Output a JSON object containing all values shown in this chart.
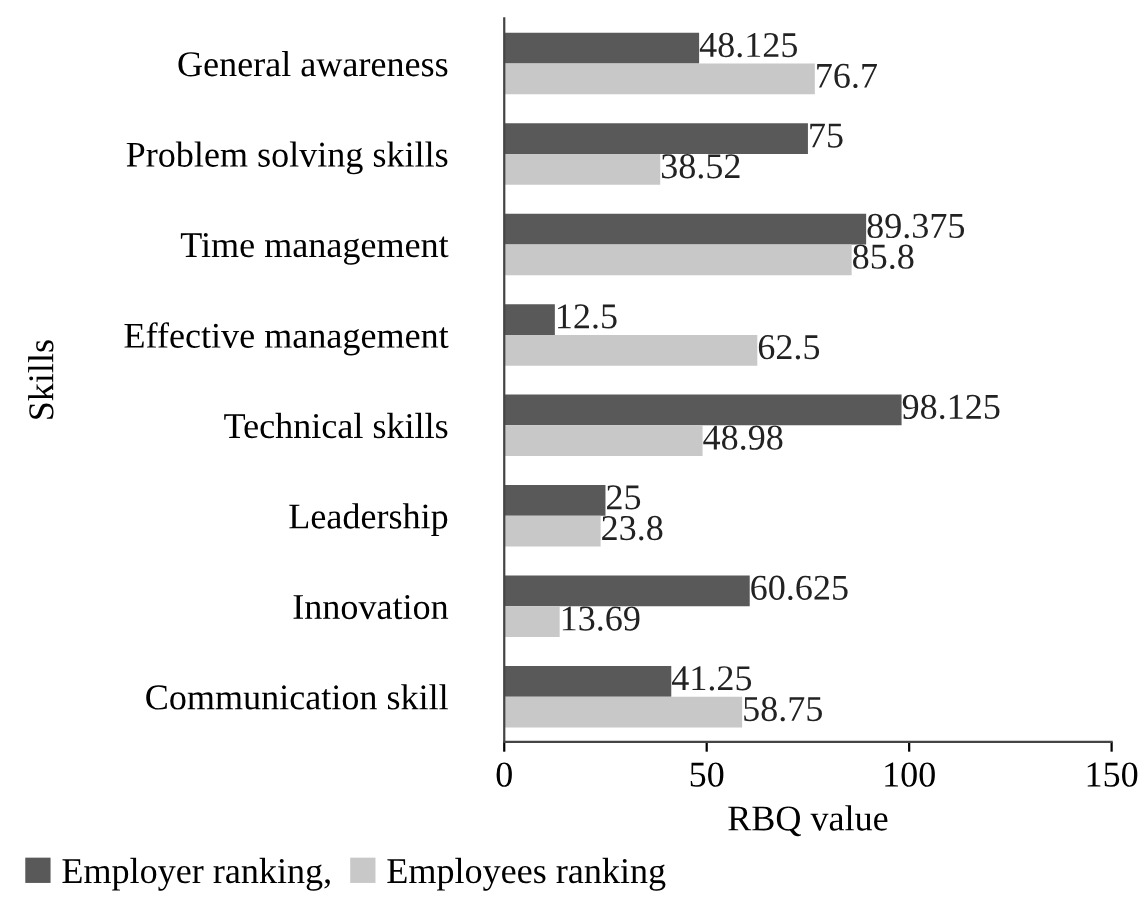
{
  "chart_data": {
    "type": "bar",
    "orientation": "horizontal",
    "xlabel": "RBQ value",
    "ylabel": "Skills",
    "categories": [
      "General awareness",
      "Problem solving skills",
      "Time management",
      "Effective management",
      "Technical skills",
      "Leadership",
      "Innovation",
      "Communication skill"
    ],
    "series": [
      {
        "name": "Employer ranking,",
        "color": "#595959",
        "values": [
          48.125,
          75,
          89.375,
          12.5,
          98.125,
          25,
          60.625,
          41.25
        ]
      },
      {
        "name": "Employees ranking",
        "color": "#c8c8c8",
        "values": [
          76.7,
          38.52,
          85.8,
          62.5,
          48.98,
          23.8,
          13.69,
          58.75
        ]
      }
    ],
    "xlim": [
      0,
      150
    ],
    "xticks": [
      0,
      50,
      100,
      150
    ],
    "data_labels": true,
    "grid": false,
    "legend": "bottom"
  }
}
